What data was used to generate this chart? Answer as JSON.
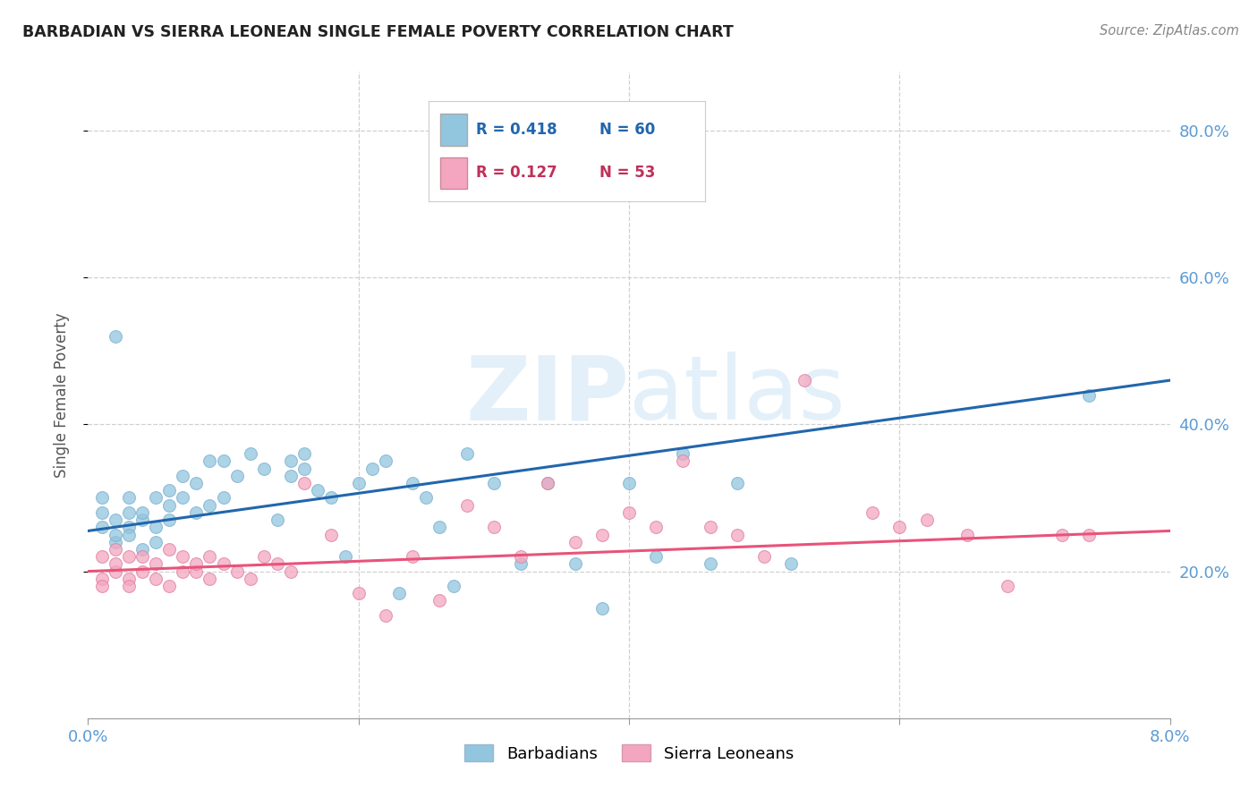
{
  "title": "BARBADIAN VS SIERRA LEONEAN SINGLE FEMALE POVERTY CORRELATION CHART",
  "source": "Source: ZipAtlas.com",
  "ylabel": "Single Female Poverty",
  "watermark": "ZIPatlas",
  "legend_blue_r": "R = 0.418",
  "legend_blue_n": "N = 60",
  "legend_pink_r": "R = 0.127",
  "legend_pink_n": "N = 53",
  "blue_color": "#92c5de",
  "pink_color": "#f4a6c0",
  "blue_line_color": "#2166ac",
  "pink_line_color": "#e8537a",
  "background_color": "#ffffff",
  "grid_color": "#d0d0d0",
  "axis_label_color": "#5b9bd5",
  "blue_scatter_x": [
    0.001,
    0.001,
    0.001,
    0.002,
    0.002,
    0.002,
    0.002,
    0.003,
    0.003,
    0.003,
    0.003,
    0.004,
    0.004,
    0.004,
    0.005,
    0.005,
    0.005,
    0.006,
    0.006,
    0.006,
    0.007,
    0.007,
    0.008,
    0.008,
    0.009,
    0.009,
    0.01,
    0.01,
    0.011,
    0.012,
    0.013,
    0.014,
    0.015,
    0.015,
    0.016,
    0.016,
    0.017,
    0.018,
    0.019,
    0.02,
    0.021,
    0.022,
    0.023,
    0.024,
    0.025,
    0.026,
    0.027,
    0.028,
    0.03,
    0.032,
    0.034,
    0.036,
    0.038,
    0.04,
    0.042,
    0.044,
    0.046,
    0.048,
    0.052,
    0.074
  ],
  "blue_scatter_y": [
    0.26,
    0.28,
    0.3,
    0.24,
    0.27,
    0.52,
    0.25,
    0.28,
    0.3,
    0.26,
    0.25,
    0.27,
    0.23,
    0.28,
    0.3,
    0.26,
    0.24,
    0.29,
    0.31,
    0.27,
    0.33,
    0.3,
    0.32,
    0.28,
    0.35,
    0.29,
    0.35,
    0.3,
    0.33,
    0.36,
    0.34,
    0.27,
    0.33,
    0.35,
    0.34,
    0.36,
    0.31,
    0.3,
    0.22,
    0.32,
    0.34,
    0.35,
    0.17,
    0.32,
    0.3,
    0.26,
    0.18,
    0.36,
    0.32,
    0.21,
    0.32,
    0.21,
    0.15,
    0.32,
    0.22,
    0.36,
    0.21,
    0.32,
    0.21,
    0.44
  ],
  "pink_scatter_x": [
    0.001,
    0.001,
    0.001,
    0.002,
    0.002,
    0.002,
    0.003,
    0.003,
    0.003,
    0.004,
    0.004,
    0.005,
    0.005,
    0.006,
    0.006,
    0.007,
    0.007,
    0.008,
    0.008,
    0.009,
    0.009,
    0.01,
    0.011,
    0.012,
    0.013,
    0.014,
    0.015,
    0.016,
    0.018,
    0.02,
    0.022,
    0.024,
    0.026,
    0.028,
    0.03,
    0.032,
    0.034,
    0.036,
    0.038,
    0.04,
    0.042,
    0.044,
    0.046,
    0.048,
    0.05,
    0.053,
    0.058,
    0.06,
    0.062,
    0.065,
    0.068,
    0.072,
    0.074
  ],
  "pink_scatter_y": [
    0.19,
    0.22,
    0.18,
    0.2,
    0.21,
    0.23,
    0.19,
    0.22,
    0.18,
    0.2,
    0.22,
    0.19,
    0.21,
    0.18,
    0.23,
    0.2,
    0.22,
    0.2,
    0.21,
    0.19,
    0.22,
    0.21,
    0.2,
    0.19,
    0.22,
    0.21,
    0.2,
    0.32,
    0.25,
    0.17,
    0.14,
    0.22,
    0.16,
    0.29,
    0.26,
    0.22,
    0.32,
    0.24,
    0.25,
    0.28,
    0.26,
    0.35,
    0.26,
    0.25,
    0.22,
    0.46,
    0.28,
    0.26,
    0.27,
    0.25,
    0.18,
    0.25,
    0.25
  ],
  "x_min": 0.0,
  "x_max": 0.08,
  "y_min": 0.0,
  "y_max": 0.88,
  "yticks": [
    0.2,
    0.4,
    0.6,
    0.8
  ],
  "ytick_labels": [
    "20.0%",
    "40.0%",
    "60.0%",
    "80.0%"
  ]
}
